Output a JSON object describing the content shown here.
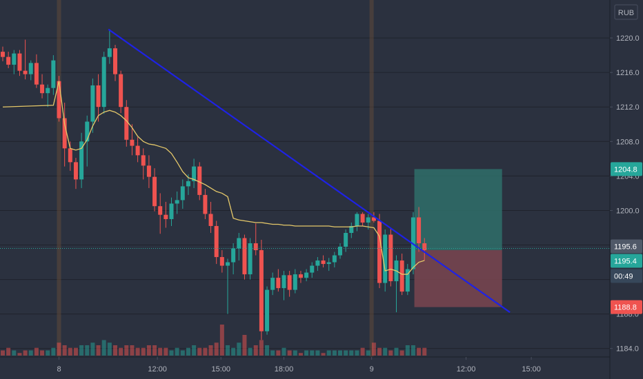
{
  "currency_label": "RUB",
  "colors": {
    "background": "#2b313f",
    "grid": "#1f232c",
    "axis_text": "#b2b5be",
    "up": "#26a69a",
    "down": "#ef5350",
    "ma": "#e6c96a",
    "trendline": "#1e22e6",
    "session_bar": "#6b4f3a",
    "profit_zone": "#2f6e6a",
    "loss_zone": "#7a4550",
    "last_price_tag": "#26a69a",
    "countdown_tag": "#37475a",
    "prev_close_tag": "#505968"
  },
  "chart_data": {
    "type": "candlestick",
    "y_axis": {
      "ticks": [
        "1220.0",
        "1216.0",
        "1212.0",
        "1208.0",
        "1204.0",
        "1200.0",
        "1188.0",
        "1184.0"
      ],
      "tick_values": [
        1220,
        1216,
        1212,
        1208,
        1204,
        1200,
        1188,
        1184
      ],
      "range": [
        1183.5,
        1224.4
      ]
    },
    "x_axis": {
      "ticks": [
        "8",
        "12:00",
        "15:00",
        "18:00",
        "9",
        "12:00",
        "15:00"
      ],
      "tick_index": [
        10,
        27.5,
        38.8,
        50,
        65.6,
        82.4,
        94
      ]
    },
    "price_tags": [
      {
        "label": "1204.8",
        "value": 1204.8,
        "kind": "take_profit"
      },
      {
        "label": "1195.6",
        "value": 1195.6,
        "kind": "previous"
      },
      {
        "label": "1195.4",
        "value": 1195.4,
        "kind": "last"
      },
      {
        "label": "00:49",
        "value": 1193.4,
        "kind": "countdown"
      },
      {
        "label": "1188.8",
        "value": 1188.8,
        "kind": "stop_loss"
      }
    ],
    "position": {
      "entry": 1195.4,
      "take_profit": 1204.8,
      "stop_loss": 1188.8,
      "from_index": 73.2,
      "to_index": 88.8
    },
    "trendline": {
      "from": {
        "index": 18.8,
        "value": 1221.0
      },
      "to": {
        "index": 90.2,
        "value": 1188.2
      }
    },
    "session_breaks": [
      10,
      65.6
    ],
    "candles": [
      [
        1218.4,
        1219.0,
        1217.3,
        1217.8
      ],
      [
        1217.8,
        1218.4,
        1216.5,
        1216.9
      ],
      [
        1216.9,
        1218.6,
        1215.8,
        1218.2
      ],
      [
        1218.2,
        1218.6,
        1215.6,
        1216.2
      ],
      [
        1216.2,
        1219.8,
        1215.2,
        1215.8
      ],
      [
        1215.8,
        1217.4,
        1215.1,
        1217.1
      ],
      [
        1217.1,
        1218.1,
        1214.2,
        1214.6
      ],
      [
        1214.6,
        1215.8,
        1213.0,
        1213.6
      ],
      [
        1213.6,
        1214.6,
        1212.0,
        1214.2
      ],
      [
        1214.2,
        1218.0,
        1213.4,
        1217.4
      ],
      [
        1215.0,
        1215.6,
        1210.3,
        1210.7
      ],
      [
        1210.7,
        1212.5,
        1205.1,
        1207.2
      ],
      [
        1207.2,
        1208.0,
        1204.6,
        1205.6
      ],
      [
        1205.6,
        1206.1,
        1202.5,
        1203.6
      ],
      [
        1203.6,
        1209.0,
        1202.6,
        1208.0
      ],
      [
        1208.0,
        1211.0,
        1205.1,
        1210.3
      ],
      [
        1210.3,
        1215.3,
        1209.0,
        1214.5
      ],
      [
        1214.5,
        1215.8,
        1210.3,
        1212.0
      ],
      [
        1212.0,
        1218.4,
        1211.2,
        1217.8
      ],
      [
        1217.8,
        1221.0,
        1217.0,
        1218.8
      ],
      [
        1218.8,
        1219.2,
        1215.0,
        1215.8
      ],
      [
        1215.8,
        1216.2,
        1211.3,
        1212.0
      ],
      [
        1212.0,
        1212.8,
        1207.4,
        1208.2
      ],
      [
        1208.2,
        1210.0,
        1206.4,
        1207.5
      ],
      [
        1207.5,
        1208.5,
        1205.6,
        1206.4
      ],
      [
        1206.4,
        1207.2,
        1203.6,
        1205.2
      ],
      [
        1205.2,
        1206.4,
        1202.6,
        1203.9
      ],
      [
        1203.9,
        1204.9,
        1199.9,
        1200.5
      ],
      [
        1200.5,
        1202.0,
        1197.3,
        1199.5
      ],
      [
        1199.5,
        1201.0,
        1198.0,
        1199.0
      ],
      [
        1199.0,
        1201.5,
        1198.2,
        1200.8
      ],
      [
        1200.8,
        1202.2,
        1199.6,
        1201.2
      ],
      [
        1201.2,
        1203.6,
        1200.2,
        1202.8
      ],
      [
        1202.8,
        1204.2,
        1201.8,
        1203.4
      ],
      [
        1203.4,
        1206.0,
        1202.6,
        1205.1
      ],
      [
        1205.1,
        1205.6,
        1201.2,
        1201.8
      ],
      [
        1201.8,
        1202.5,
        1199.0,
        1199.6
      ],
      [
        1199.6,
        1201.0,
        1197.4,
        1198.2
      ],
      [
        1198.2,
        1198.8,
        1193.8,
        1194.6
      ],
      [
        1194.6,
        1195.4,
        1192.8,
        1193.6
      ],
      [
        1193.6,
        1194.4,
        1188.0,
        1194.0
      ],
      [
        1194.0,
        1196.2,
        1192.6,
        1195.6
      ],
      [
        1195.6,
        1197.4,
        1194.2,
        1196.8
      ],
      [
        1196.8,
        1197.2,
        1192.0,
        1192.6
      ],
      [
        1192.6,
        1196.8,
        1192.0,
        1196.2
      ],
      [
        1196.2,
        1198.5,
        1194.8,
        1195.4
      ],
      [
        1195.4,
        1196.6,
        1185.0,
        1186.0
      ],
      [
        1186.0,
        1191.2,
        1185.6,
        1190.8
      ],
      [
        1190.8,
        1192.8,
        1190.2,
        1192.2
      ],
      [
        1192.2,
        1193.2,
        1190.6,
        1191.0
      ],
      [
        1191.0,
        1193.0,
        1189.6,
        1192.5
      ],
      [
        1192.5,
        1193.0,
        1190.0,
        1190.8
      ],
      [
        1190.8,
        1193.2,
        1190.4,
        1192.6
      ],
      [
        1192.6,
        1193.0,
        1191.6,
        1192.2
      ],
      [
        1192.2,
        1193.2,
        1191.8,
        1192.8
      ],
      [
        1192.8,
        1194.0,
        1192.2,
        1193.6
      ],
      [
        1193.6,
        1194.6,
        1193.0,
        1194.2
      ],
      [
        1194.2,
        1194.8,
        1193.4,
        1193.8
      ],
      [
        1193.8,
        1194.5,
        1193.0,
        1194.0
      ],
      [
        1194.0,
        1195.2,
        1193.4,
        1194.8
      ],
      [
        1194.8,
        1196.2,
        1194.4,
        1195.8
      ],
      [
        1195.8,
        1197.8,
        1195.2,
        1197.4
      ],
      [
        1197.4,
        1198.6,
        1196.8,
        1198.2
      ],
      [
        1198.2,
        1199.8,
        1197.6,
        1199.6
      ],
      [
        1199.6,
        1199.8,
        1198.2,
        1198.6
      ],
      [
        1198.6,
        1199.6,
        1197.8,
        1199.2
      ],
      [
        1199.2,
        1199.8,
        1198.6,
        1198.8
      ],
      [
        1198.8,
        1199.6,
        1191.0,
        1191.6
      ],
      [
        1191.6,
        1197.8,
        1190.6,
        1197.2
      ],
      [
        1197.2,
        1198.0,
        1191.2,
        1191.8
      ],
      [
        1191.8,
        1194.8,
        1188.2,
        1194.2
      ],
      [
        1194.2,
        1195.0,
        1190.2,
        1190.6
      ],
      [
        1190.6,
        1193.8,
        1190.2,
        1193.2
      ],
      [
        1193.2,
        1199.8,
        1192.6,
        1199.2
      ],
      [
        1199.2,
        1200.4,
        1195.2,
        1196.2
      ],
      [
        1196.2,
        1196.8,
        1194.2,
        1195.4
      ]
    ],
    "ma": [
      [
        0,
        1212.0
      ],
      [
        9,
        1212.2
      ],
      [
        10,
        1215.0
      ],
      [
        11,
        1210.0
      ],
      [
        12,
        1207.2
      ],
      [
        13,
        1207.0
      ],
      [
        14,
        1207.2
      ],
      [
        15,
        1208.2
      ],
      [
        16,
        1209.8
      ],
      [
        17,
        1211.0
      ],
      [
        18,
        1211.4
      ],
      [
        19,
        1211.6
      ],
      [
        20,
        1211.4
      ],
      [
        21,
        1211.0
      ],
      [
        22,
        1210.4
      ],
      [
        23,
        1209.6
      ],
      [
        24,
        1208.6
      ],
      [
        25,
        1208.0
      ],
      [
        26,
        1207.7
      ],
      [
        27,
        1207.6
      ],
      [
        28,
        1207.4
      ],
      [
        29,
        1207.2
      ],
      [
        30,
        1206.6
      ],
      [
        31,
        1205.6
      ],
      [
        32,
        1204.5
      ],
      [
        33,
        1203.8
      ],
      [
        34,
        1203.6
      ],
      [
        35,
        1203.3
      ],
      [
        36,
        1203.0
      ],
      [
        37,
        1202.6
      ],
      [
        38,
        1202.2
      ],
      [
        39,
        1202.0
      ],
      [
        40,
        1201.6
      ],
      [
        41,
        1199.1
      ],
      [
        42,
        1198.9
      ],
      [
        43,
        1198.8
      ],
      [
        44,
        1198.7
      ],
      [
        45,
        1198.6
      ],
      [
        46,
        1198.6
      ],
      [
        47,
        1198.5
      ],
      [
        48,
        1198.4
      ],
      [
        49,
        1198.4
      ],
      [
        50,
        1198.3
      ],
      [
        51,
        1198.3
      ],
      [
        52,
        1198.2
      ],
      [
        53,
        1198.2
      ],
      [
        54,
        1198.2
      ],
      [
        55,
        1198.2
      ],
      [
        56,
        1198.2
      ],
      [
        57,
        1198.2
      ],
      [
        58,
        1198.2
      ],
      [
        59,
        1198.1
      ],
      [
        60,
        1198.1
      ],
      [
        61,
        1198.1
      ],
      [
        62,
        1198.1
      ],
      [
        63,
        1198.2
      ],
      [
        64,
        1198.2
      ],
      [
        65,
        1198.1
      ],
      [
        66,
        1198.0
      ],
      [
        67,
        1197.0
      ],
      [
        68,
        1193.0
      ],
      [
        69,
        1193.2
      ],
      [
        70,
        1193.0
      ],
      [
        71,
        1192.6
      ],
      [
        72,
        1192.6
      ],
      [
        73,
        1193.4
      ],
      [
        74,
        1194.0
      ],
      [
        75,
        1194.2
      ]
    ],
    "volume": [
      2,
      3,
      2,
      1,
      2,
      2,
      3,
      2,
      2,
      3,
      5,
      4,
      3,
      3,
      4,
      4,
      5,
      4,
      6,
      5,
      4,
      3,
      4,
      4,
      3,
      3,
      4,
      4,
      3,
      3,
      2,
      3,
      2,
      3,
      4,
      3,
      3,
      4,
      5,
      12,
      4,
      3,
      5,
      8,
      3,
      4,
      6,
      4,
      2,
      2,
      3,
      2,
      2,
      1,
      2,
      2,
      2,
      1,
      2,
      2,
      2,
      2,
      2,
      2,
      3,
      2,
      5,
      3,
      3,
      2,
      3,
      2,
      4,
      4,
      3,
      3
    ]
  }
}
